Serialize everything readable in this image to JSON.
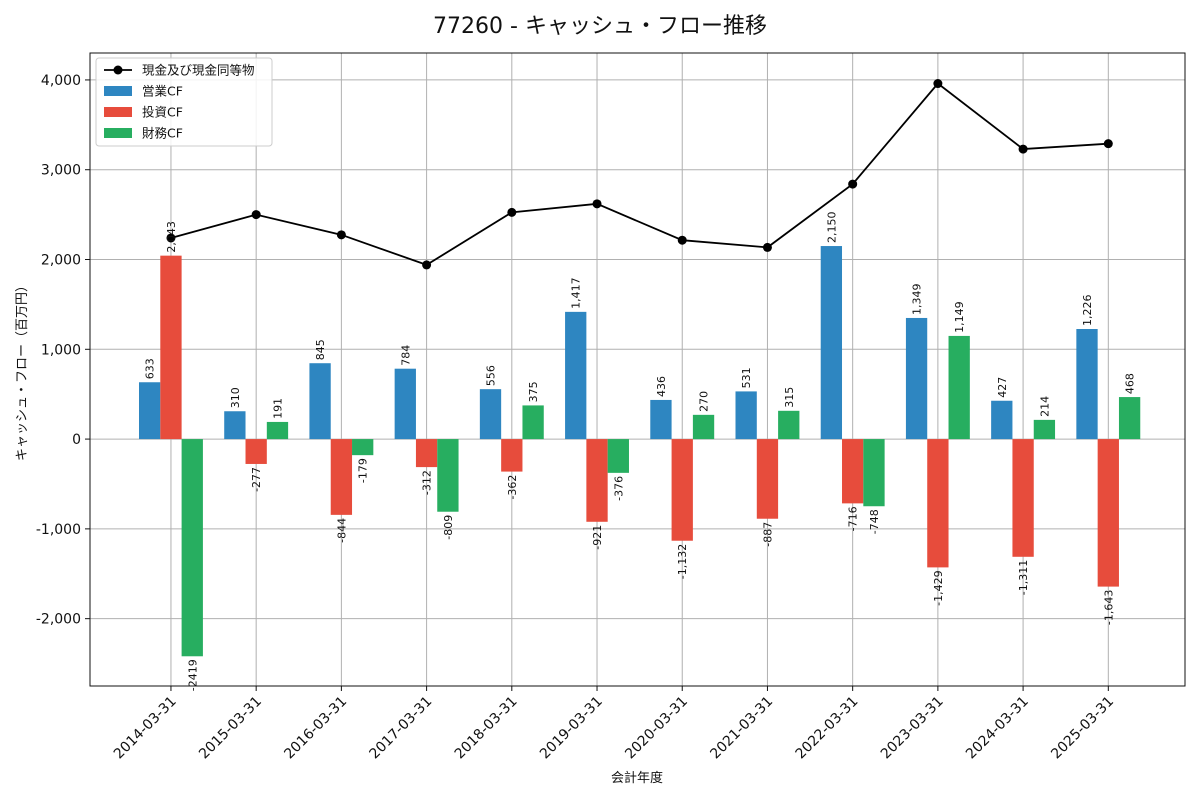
{
  "chart_data": {
    "type": "bar",
    "title": "77260 - キャッシュ・フロー推移",
    "xlabel": "会計年度",
    "ylabel": "キャッシュ・フロー（百万円）",
    "categories": [
      "2014-03-31",
      "2015-03-31",
      "2016-03-31",
      "2017-03-31",
      "2018-03-31",
      "2019-03-31",
      "2020-03-31",
      "2021-03-31",
      "2022-03-31",
      "2023-03-31",
      "2024-03-31",
      "2025-03-31"
    ],
    "ylim": [
      -2750,
      4300
    ],
    "yticks": [
      -2000,
      -1000,
      0,
      1000,
      2000,
      3000,
      4000
    ],
    "ytick_labels": [
      "-2,000",
      "-1,000",
      "0",
      "1,000",
      "2,000",
      "3,000",
      "4,000"
    ],
    "grid": true,
    "legend_position": "top-left",
    "series": [
      {
        "name": "営業CF",
        "kind": "bar",
        "color": "#2e86c1",
        "values": [
          633,
          310,
          845,
          784,
          556,
          1417,
          436,
          531,
          2150,
          1349,
          427,
          1226
        ],
        "labels": [
          "633",
          "310",
          "845",
          "784",
          "556",
          "1,417",
          "436",
          "531",
          "2,150",
          "1,349",
          "427",
          "1,226"
        ]
      },
      {
        "name": "投資CF",
        "kind": "bar",
        "color": "#e74c3c",
        "values": [
          2043,
          -277,
          -844,
          -312,
          -362,
          -921,
          -1132,
          -887,
          -716,
          -1429,
          -1311,
          -1643
        ],
        "labels": [
          "2,043",
          "-277",
          "-844",
          "-312",
          "-362",
          "-921",
          "-1,132",
          "-887",
          "-716",
          "-1,429",
          "-1,311",
          "-1,643"
        ]
      },
      {
        "name": "財務CF",
        "kind": "bar",
        "color": "#27ae60",
        "values": [
          -2419,
          191,
          -179,
          -809,
          375,
          -376,
          270,
          315,
          -748,
          1149,
          214,
          468
        ],
        "labels": [
          "-2419",
          "191",
          "-179",
          "-809",
          "375",
          "-376",
          "270",
          "315",
          "-748",
          "1,149",
          "214",
          "468"
        ]
      },
      {
        "name": "現金及び現金同等物",
        "kind": "line",
        "color": "#000000",
        "values": [
          2240,
          2500,
          2275,
          1940,
          2525,
          2620,
          2215,
          2135,
          2840,
          3960,
          3230,
          3290
        ]
      }
    ]
  }
}
